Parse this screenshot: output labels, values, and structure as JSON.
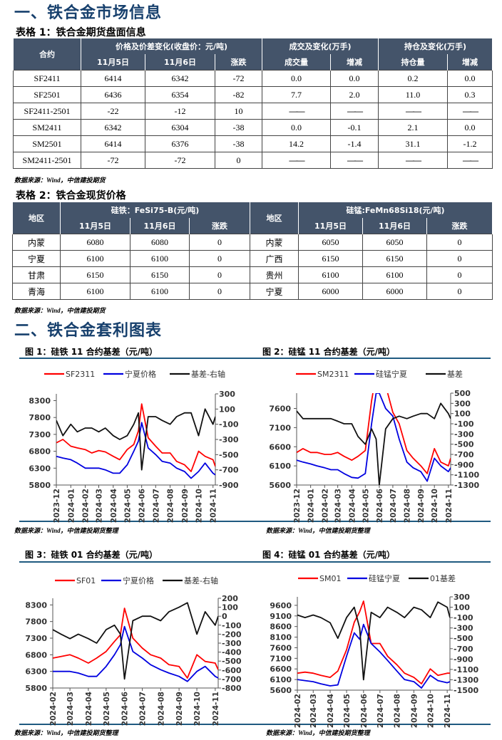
{
  "section1": {
    "title": "一、铁合金市场信息"
  },
  "table1": {
    "caption": "表格 1：铁合金期货盘面信息",
    "group_headers": [
      "合约",
      "价格及价差变化(收盘价：元/吨)",
      "成交及变化(万手)",
      "持仓及变化(万手)"
    ],
    "sub_headers": [
      "11月5日",
      "11月6日",
      "涨跌",
      "成交量",
      "增减",
      "持仓量",
      "增减"
    ],
    "rows": [
      [
        "SF2411",
        "6414",
        "6342",
        "-72",
        "0.0",
        "0.0",
        "0.2",
        "0.0"
      ],
      [
        "SF2501",
        "6436",
        "6354",
        "-82",
        "7.7",
        "2.0",
        "11.0",
        "0.3"
      ],
      [
        "SF2411-2501",
        "-22",
        "-12",
        "10",
        "——",
        "——",
        "——",
        "——"
      ],
      [
        "SM2411",
        "6342",
        "6304",
        "-38",
        "0.0",
        "-0.1",
        "2.1",
        "0.0"
      ],
      [
        "SM2501",
        "6414",
        "6376",
        "-38",
        "14.2",
        "-1.4",
        "31.1",
        "-1.2"
      ],
      [
        "SM2411-2501",
        "-72",
        "-72",
        "0",
        "——",
        "——",
        "——",
        "——"
      ]
    ],
    "source": "数据来源：Wind，中信建投期货"
  },
  "table2": {
    "caption": "表格 2：铁合金现货价格",
    "group_headers": [
      "地区",
      "硅铁：FeSi75-B(元/吨)",
      "地区",
      "硅锰:FeMn68Si18(元/吨)"
    ],
    "sub_headers": [
      "11月5日",
      "11月6日",
      "涨跌",
      "11月5日",
      "11月6日",
      "涨跌"
    ],
    "rows": [
      [
        "内蒙",
        "6080",
        "6080",
        "0",
        "内蒙",
        "6050",
        "6050",
        "0"
      ],
      [
        "宁夏",
        "6100",
        "6100",
        "0",
        "广西",
        "6150",
        "6150",
        "0"
      ],
      [
        "甘肃",
        "6150",
        "6150",
        "0",
        "贵州",
        "6100",
        "6100",
        "0"
      ],
      [
        "青海",
        "6100",
        "6100",
        "0",
        "宁夏",
        "6000",
        "6000",
        "0"
      ]
    ],
    "source": "数据来源：Wind，中信建投期货"
  },
  "section2": {
    "title": "二、铁合金套利图表"
  },
  "colors": {
    "header_bg": "#44546a",
    "heading": "#17406d",
    "red": "#ff0000",
    "blue": "#0000e0",
    "black": "#111111"
  },
  "chart_data": [
    {
      "type": "line",
      "title": "图 1：硅铁 11 合约基差（元/吨）",
      "source": "数据来源：Wind，中信建投期货整理",
      "x_ticks": [
        "2023-12",
        "2024-01",
        "2024-02",
        "2024-03",
        "2024-04",
        "2024-05",
        "2024-06",
        "2024-07",
        "2024-08",
        "2024-09",
        "2024-10",
        "2024-11"
      ],
      "left_ylim": [
        5800,
        8500
      ],
      "left_ticks": [
        5800,
        6300,
        6800,
        7300,
        7800,
        8300
      ],
      "right_ylim": [
        -900,
        300
      ],
      "right_ticks": [
        -900,
        -700,
        -500,
        -300,
        -100,
        100,
        300
      ],
      "x": [
        "2023-12-01",
        "2023-12-15",
        "2024-01-01",
        "2024-01-15",
        "2024-02-01",
        "2024-02-15",
        "2024-03-01",
        "2024-03-15",
        "2024-04-01",
        "2024-04-15",
        "2024-05-01",
        "2024-05-15",
        "2024-05-25",
        "2024-06-01",
        "2024-06-15",
        "2024-07-01",
        "2024-07-15",
        "2024-08-01",
        "2024-08-15",
        "2024-09-01",
        "2024-09-15",
        "2024-10-01",
        "2024-10-15",
        "2024-11-01",
        "2024-11-06"
      ],
      "series": [
        {
          "name": "SF2311",
          "axis": "left",
          "color": "#ff0000",
          "values": [
            7050,
            7150,
            6950,
            6900,
            6850,
            6750,
            6820,
            6780,
            6650,
            6550,
            6850,
            7000,
            7400,
            8200,
            7200,
            6950,
            6750,
            6750,
            6500,
            6400,
            6200,
            6800,
            6650,
            6550,
            6350
          ]
        },
        {
          "name": "宁夏价格",
          "axis": "left",
          "color": "#0000e0",
          "values": [
            6650,
            6600,
            6550,
            6450,
            6300,
            6300,
            6300,
            6250,
            6150,
            6150,
            6400,
            6800,
            7100,
            7650,
            6900,
            6700,
            6500,
            6450,
            6300,
            6200,
            6000,
            6200,
            6450,
            6150,
            6100
          ]
        },
        {
          "name": "基差-右轴",
          "axis": "right",
          "color": "#111111",
          "values": [
            -50,
            -250,
            -100,
            -200,
            -150,
            -150,
            -200,
            -150,
            -250,
            -300,
            -250,
            -100,
            50,
            -700,
            0,
            0,
            -50,
            -100,
            0,
            50,
            50,
            -250,
            100,
            -100,
            0
          ]
        }
      ]
    },
    {
      "type": "line",
      "title": "图 2：硅锰 11 合约基差（元/吨）",
      "source": "数据来源：Wind，中信建投期货整理",
      "x_ticks": [
        "2023-12",
        "2024-01",
        "2024-02",
        "2024-03",
        "2024-04",
        "2024-05",
        "2024-06",
        "2024-07",
        "2024-08",
        "2024-09",
        "2024-10",
        "2024-11"
      ],
      "left_ylim": [
        5600,
        8000
      ],
      "left_ticks": [
        5600,
        6100,
        6600,
        7100,
        7600
      ],
      "right_ylim": [
        -1300,
        500
      ],
      "right_ticks": [
        -1300,
        -1100,
        -900,
        -700,
        -500,
        -300,
        -100,
        100,
        300,
        500
      ],
      "x": [
        "2023-12-01",
        "2023-12-15",
        "2024-01-01",
        "2024-01-15",
        "2024-02-01",
        "2024-02-15",
        "2024-03-01",
        "2024-03-15",
        "2024-04-01",
        "2024-04-15",
        "2024-05-01",
        "2024-05-15",
        "2024-05-25",
        "2024-06-01",
        "2024-06-15",
        "2024-07-01",
        "2024-07-15",
        "2024-08-01",
        "2024-08-15",
        "2024-09-01",
        "2024-09-15",
        "2024-10-01",
        "2024-10-15",
        "2024-11-01",
        "2024-11-06"
      ],
      "series": [
        {
          "name": "SM2311",
          "axis": "left",
          "color": "#ff0000",
          "values": [
            6450,
            6550,
            6450,
            6450,
            6400,
            6400,
            6450,
            6350,
            6250,
            6350,
            6500,
            7800,
            8500,
            8500,
            8200,
            7500,
            7200,
            6500,
            6300,
            6100,
            5900,
            6550,
            6200,
            6100,
            6300
          ]
        },
        {
          "name": "硅锰宁夏",
          "axis": "left",
          "color": "#0000e0",
          "values": [
            6250,
            6200,
            6150,
            6100,
            6050,
            6000,
            6000,
            5900,
            5800,
            5780,
            5900,
            7200,
            8000,
            8000,
            7600,
            7400,
            6800,
            6200,
            6050,
            5950,
            5700,
            6300,
            6100,
            5950,
            6050
          ]
        },
        {
          "name": "基差",
          "axis": "right",
          "color": "#111111",
          "values": [
            150,
            0,
            0,
            0,
            0,
            0,
            -50,
            -100,
            -100,
            -350,
            -500,
            -200,
            -400,
            -1300,
            -200,
            0,
            50,
            0,
            50,
            100,
            100,
            0,
            300,
            100,
            0
          ]
        }
      ]
    },
    {
      "type": "line",
      "title": "图 3：硅铁 01 合约基差（元/吨）",
      "source": "数据来源：Wind，中信建投期货整理",
      "x_ticks": [
        "2024-02",
        "2024-03",
        "2024-04",
        "2024-05",
        "2024-06",
        "2024-07",
        "2024-08",
        "2024-09",
        "2024-10",
        "2024-11"
      ],
      "left_ylim": [
        5800,
        8500
      ],
      "left_ticks": [
        5800,
        6300,
        6800,
        7300,
        7800,
        8300
      ],
      "right_ylim": [
        -800,
        200
      ],
      "right_ticks": [
        -800,
        -700,
        -600,
        -500,
        -400,
        -300,
        -200,
        -100,
        0,
        100,
        200
      ],
      "x": [
        "2024-02-01",
        "2024-02-15",
        "2024-03-01",
        "2024-03-15",
        "2024-04-01",
        "2024-04-15",
        "2024-05-01",
        "2024-05-15",
        "2024-05-25",
        "2024-06-01",
        "2024-06-15",
        "2024-07-01",
        "2024-07-15",
        "2024-08-01",
        "2024-08-15",
        "2024-09-01",
        "2024-09-15",
        "2024-10-01",
        "2024-10-15",
        "2024-11-01",
        "2024-11-06"
      ],
      "series": [
        {
          "name": "SF01",
          "axis": "left",
          "color": "#ff0000",
          "values": [
            6700,
            6750,
            6800,
            6700,
            6550,
            6700,
            6900,
            7200,
            7400,
            8200,
            7300,
            7000,
            6800,
            6700,
            6500,
            6450,
            6100,
            6800,
            6600,
            6550,
            6350
          ]
        },
        {
          "name": "宁夏价格",
          "axis": "left",
          "color": "#0000e0",
          "values": [
            6300,
            6300,
            6300,
            6250,
            6150,
            6150,
            6450,
            6800,
            7100,
            7650,
            6900,
            6700,
            6500,
            6350,
            6250,
            6150,
            6000,
            6300,
            6450,
            6150,
            6100
          ]
        },
        {
          "name": "基差-右轴",
          "axis": "right",
          "color": "#111111",
          "values": [
            -150,
            -200,
            -250,
            -200,
            -250,
            -300,
            -150,
            -100,
            -200,
            -700,
            -50,
            0,
            0,
            -50,
            50,
            100,
            150,
            -200,
            50,
            -100,
            0
          ]
        }
      ]
    },
    {
      "type": "line",
      "title": "图 4：硅锰 01 合约基差（元/吨）",
      "source": "数据来源：Wind，中信建投期货整理",
      "x_ticks": [
        "2024-02",
        "2024-03",
        "2024-04",
        "2024-05",
        "2024-06",
        "2024-07",
        "2024-08",
        "2024-09",
        "2024-10",
        "2024-11"
      ],
      "left_ylim": [
        5600,
        10000
      ],
      "left_ticks": [
        5600,
        6100,
        6600,
        7100,
        7600,
        8100,
        8600,
        9100,
        9600
      ],
      "right_ylim": [
        -1500,
        300
      ],
      "right_ticks": [
        -1500,
        -1300,
        -1100,
        -900,
        -700,
        -500,
        -300,
        -100,
        100,
        300
      ],
      "x": [
        "2024-02-01",
        "2024-02-15",
        "2024-03-01",
        "2024-03-15",
        "2024-04-01",
        "2024-04-15",
        "2024-05-01",
        "2024-05-15",
        "2024-05-25",
        "2024-06-01",
        "2024-06-15",
        "2024-07-01",
        "2024-07-15",
        "2024-08-01",
        "2024-08-15",
        "2024-09-01",
        "2024-09-15",
        "2024-10-01",
        "2024-10-15",
        "2024-11-01",
        "2024-11-06"
      ],
      "series": [
        {
          "name": "SM01",
          "axis": "left",
          "color": "#ff0000",
          "values": [
            6400,
            6450,
            6400,
            6300,
            6200,
            6500,
            7500,
            8800,
            9300,
            9800,
            7800,
            7800,
            7200,
            6800,
            6400,
            6200,
            5900,
            6600,
            6300,
            6400,
            6400
          ]
        },
        {
          "name": "硅锰宁夏",
          "axis": "left",
          "color": "#0000e0",
          "values": [
            6100,
            6050,
            6000,
            5900,
            5800,
            5850,
            7200,
            8300,
            8000,
            8700,
            7800,
            7400,
            7000,
            6500,
            6100,
            6000,
            5700,
            6300,
            6050,
            5950,
            6000
          ]
        },
        {
          "name": "01基差",
          "axis": "right",
          "color": "#111111",
          "values": [
            -50,
            -100,
            -50,
            -100,
            -200,
            -500,
            -100,
            100,
            -300,
            -1300,
            0,
            -100,
            100,
            0,
            -100,
            100,
            50,
            -100,
            200,
            100,
            -100
          ]
        }
      ]
    }
  ]
}
